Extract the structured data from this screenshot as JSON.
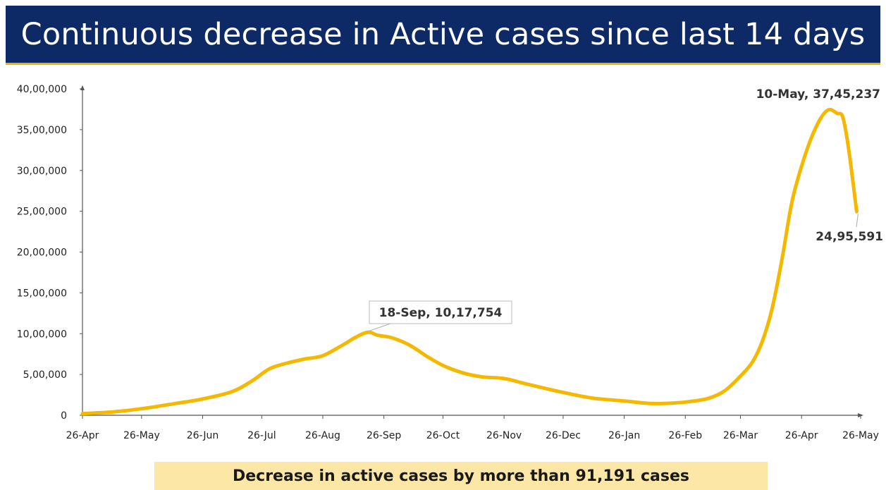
{
  "banner": {
    "title": "Continuous decrease in Active cases since last 14 days",
    "background": "#0e2a66",
    "accent": "#f0b400"
  },
  "footer": {
    "text": "Decrease in active cases by more than 91,191 cases",
    "background": "#fde7a6"
  },
  "chart_data": {
    "type": "line",
    "title": "",
    "xlabel": "",
    "ylabel": "",
    "ylim": [
      0,
      4000000
    ],
    "grid": false,
    "y_ticks": [
      {
        "value": 0,
        "label": "0"
      },
      {
        "value": 500000,
        "label": "5,00,000"
      },
      {
        "value": 1000000,
        "label": "10,00,000"
      },
      {
        "value": 1500000,
        "label": "15,00,000"
      },
      {
        "value": 2000000,
        "label": "20,00,000"
      },
      {
        "value": 2500000,
        "label": "25,00,000"
      },
      {
        "value": 3000000,
        "label": "30,00,000"
      },
      {
        "value": 3500000,
        "label": "35,00,000"
      },
      {
        "value": 4000000,
        "label": "40,00,000"
      }
    ],
    "x_ticks": [
      {
        "date": "2020-04-26",
        "label": "26-Apr"
      },
      {
        "date": "2020-05-26",
        "label": "26-May"
      },
      {
        "date": "2020-06-26",
        "label": "26-Jun"
      },
      {
        "date": "2020-07-26",
        "label": "26-Jul"
      },
      {
        "date": "2020-08-26",
        "label": "26-Aug"
      },
      {
        "date": "2020-09-26",
        "label": "26-Sep"
      },
      {
        "date": "2020-10-26",
        "label": "26-Oct"
      },
      {
        "date": "2020-11-26",
        "label": "26-Nov"
      },
      {
        "date": "2020-12-26",
        "label": "26-Dec"
      },
      {
        "date": "2021-01-26",
        "label": "26-Jan"
      },
      {
        "date": "2021-02-26",
        "label": "26-Feb"
      },
      {
        "date": "2021-03-26",
        "label": "26-Mar"
      },
      {
        "date": "2021-04-26",
        "label": "26-Apr"
      },
      {
        "date": "2021-05-26",
        "label": "26-May"
      }
    ],
    "series": [
      {
        "color": "#f5b800",
        "points": [
          {
            "x": "2020-04-26",
            "y": 20000
          },
          {
            "x": "2020-05-11",
            "y": 40000
          },
          {
            "x": "2020-05-26",
            "y": 80000
          },
          {
            "x": "2020-06-11",
            "y": 140000
          },
          {
            "x": "2020-06-26",
            "y": 200000
          },
          {
            "x": "2020-07-11",
            "y": 290000
          },
          {
            "x": "2020-07-21",
            "y": 420000
          },
          {
            "x": "2020-07-30",
            "y": 570000
          },
          {
            "x": "2020-08-08",
            "y": 640000
          },
          {
            "x": "2020-08-17",
            "y": 690000
          },
          {
            "x": "2020-08-26",
            "y": 730000
          },
          {
            "x": "2020-09-05",
            "y": 860000
          },
          {
            "x": "2020-09-12",
            "y": 960000
          },
          {
            "x": "2020-09-18",
            "y": 1017754
          },
          {
            "x": "2020-09-23",
            "y": 980000
          },
          {
            "x": "2020-09-30",
            "y": 950000
          },
          {
            "x": "2020-10-09",
            "y": 860000
          },
          {
            "x": "2020-10-18",
            "y": 720000
          },
          {
            "x": "2020-10-26",
            "y": 610000
          },
          {
            "x": "2020-11-05",
            "y": 520000
          },
          {
            "x": "2020-11-15",
            "y": 470000
          },
          {
            "x": "2020-11-26",
            "y": 450000
          },
          {
            "x": "2020-12-08",
            "y": 380000
          },
          {
            "x": "2020-12-26",
            "y": 280000
          },
          {
            "x": "2021-01-10",
            "y": 210000
          },
          {
            "x": "2021-01-26",
            "y": 175000
          },
          {
            "x": "2021-02-08",
            "y": 145000
          },
          {
            "x": "2021-02-20",
            "y": 150000
          },
          {
            "x": "2021-03-01",
            "y": 170000
          },
          {
            "x": "2021-03-10",
            "y": 210000
          },
          {
            "x": "2021-03-18",
            "y": 300000
          },
          {
            "x": "2021-03-26",
            "y": 480000
          },
          {
            "x": "2021-04-01",
            "y": 650000
          },
          {
            "x": "2021-04-06",
            "y": 900000
          },
          {
            "x": "2021-04-11",
            "y": 1300000
          },
          {
            "x": "2021-04-16",
            "y": 1900000
          },
          {
            "x": "2021-04-21",
            "y": 2600000
          },
          {
            "x": "2021-04-26",
            "y": 3050000
          },
          {
            "x": "2021-05-01",
            "y": 3400000
          },
          {
            "x": "2021-05-06",
            "y": 3650000
          },
          {
            "x": "2021-05-10",
            "y": 3745237
          },
          {
            "x": "2021-05-14",
            "y": 3700000
          },
          {
            "x": "2021-05-17",
            "y": 3650000
          },
          {
            "x": "2021-05-20",
            "y": 3250000
          },
          {
            "x": "2021-05-24",
            "y": 2495591
          }
        ]
      }
    ],
    "annotations": [
      {
        "x": "2020-09-18",
        "y": 1017754,
        "label": "18-Sep, 10,17,754",
        "boxed": true
      },
      {
        "x": "2021-05-10",
        "y": 3745237,
        "label": "10-May, 37,45,237",
        "boxed": false
      },
      {
        "x": "2021-05-24",
        "y": 2495591,
        "label": "24,95,591",
        "boxed": false
      }
    ]
  }
}
